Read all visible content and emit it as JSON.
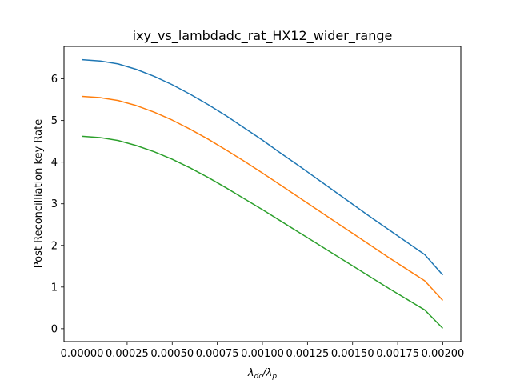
{
  "chart_data": {
    "type": "line",
    "title": "ixy_vs_lambdadc_rat_HX12_wider_range",
    "xlabel": "λdc/λp",
    "xlabel_main": "λ",
    "xlabel_sub1": "dc",
    "xlabel_slash": "/λ",
    "xlabel_sub2": "p",
    "ylabel": "Post Reconcilliation key Rate",
    "xlim": [
      -0.0001,
      0.0021
    ],
    "ylim": [
      -0.31,
      6.78
    ],
    "x_ticks": [
      0.0,
      0.00025,
      0.0005,
      0.00075,
      0.001,
      0.00125,
      0.0015,
      0.00175,
      0.002
    ],
    "x_tick_labels": [
      "0.00000",
      "0.00025",
      "0.00050",
      "0.00075",
      "0.00100",
      "0.00125",
      "0.00150",
      "0.00175",
      "0.00200"
    ],
    "y_ticks": [
      0,
      1,
      2,
      3,
      4,
      5,
      6
    ],
    "y_tick_labels": [
      "0",
      "1",
      "2",
      "3",
      "4",
      "5",
      "6"
    ],
    "grid": false,
    "legend": false,
    "x": [
      0.0,
      0.0001,
      0.0002,
      0.0003,
      0.0004,
      0.0005,
      0.0006,
      0.0007,
      0.0008,
      0.0009,
      0.001,
      0.0011,
      0.0012,
      0.0013,
      0.0014,
      0.0015,
      0.0016,
      0.0017,
      0.0018,
      0.0019,
      0.002
    ],
    "series": [
      {
        "color": "#1f77b4",
        "values": [
          6.46,
          6.43,
          6.36,
          6.23,
          6.06,
          5.86,
          5.63,
          5.38,
          5.11,
          4.82,
          4.53,
          4.22,
          3.92,
          3.61,
          3.3,
          2.99,
          2.68,
          2.38,
          2.08,
          1.78,
          1.29
        ]
      },
      {
        "color": "#ff7f0e",
        "values": [
          5.58,
          5.55,
          5.48,
          5.36,
          5.2,
          5.01,
          4.79,
          4.55,
          4.29,
          4.02,
          3.74,
          3.45,
          3.16,
          2.87,
          2.58,
          2.29,
          2.0,
          1.71,
          1.43,
          1.15,
          0.68
        ]
      },
      {
        "color": "#2ca02c",
        "values": [
          4.62,
          4.59,
          4.52,
          4.4,
          4.25,
          4.07,
          3.86,
          3.63,
          3.38,
          3.12,
          2.86,
          2.59,
          2.32,
          2.05,
          1.78,
          1.51,
          1.24,
          0.97,
          0.71,
          0.45,
          0.01
        ]
      }
    ]
  }
}
